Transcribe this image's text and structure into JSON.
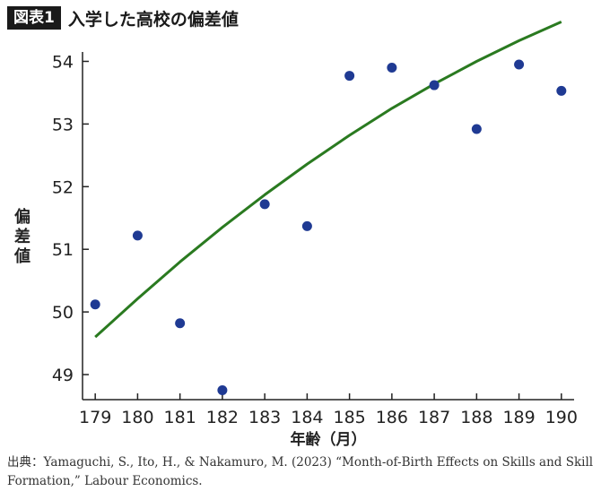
{
  "header": {
    "badge": "図表1",
    "title": "入学した高校の偏差値"
  },
  "chart_data": {
    "type": "scatter",
    "xlabel": "年齢（月）",
    "ylabel": "偏差値",
    "xlim": [
      178.7,
      190.3
    ],
    "ylim": [
      48.6,
      54.15
    ],
    "xticks": [
      179,
      180,
      181,
      182,
      183,
      184,
      185,
      186,
      187,
      188,
      189,
      190
    ],
    "yticks": [
      49,
      50,
      51,
      52,
      53,
      54
    ],
    "points": [
      {
        "x": 179,
        "y": 50.12
      },
      {
        "x": 180,
        "y": 51.22
      },
      {
        "x": 181,
        "y": 49.82
      },
      {
        "x": 182,
        "y": 48.75
      },
      {
        "x": 183,
        "y": 51.72
      },
      {
        "x": 184,
        "y": 51.37
      },
      {
        "x": 185,
        "y": 53.77
      },
      {
        "x": 186,
        "y": 53.9
      },
      {
        "x": 187,
        "y": 53.62
      },
      {
        "x": 188,
        "y": 52.92
      },
      {
        "x": 189,
        "y": 53.95
      },
      {
        "x": 190,
        "y": 53.53
      }
    ],
    "fit_line": {
      "type": "quadratic",
      "x": [
        179,
        180,
        181,
        182,
        183,
        184,
        185,
        186,
        187,
        188,
        189,
        190
      ],
      "y": [
        49.6,
        50.21,
        50.8,
        51.35,
        51.87,
        52.36,
        52.82,
        53.25,
        53.64,
        54.0,
        54.33,
        54.63
      ]
    },
    "grid": false,
    "point_color": "#1f3a93",
    "line_color": "#2a7a20"
  },
  "source": "出典：Yamaguchi, S., Ito, H., & Nakamuro, M. (2023) “Month-of-Birth Effects on Skills and Skill Formation,” Labour Economics."
}
